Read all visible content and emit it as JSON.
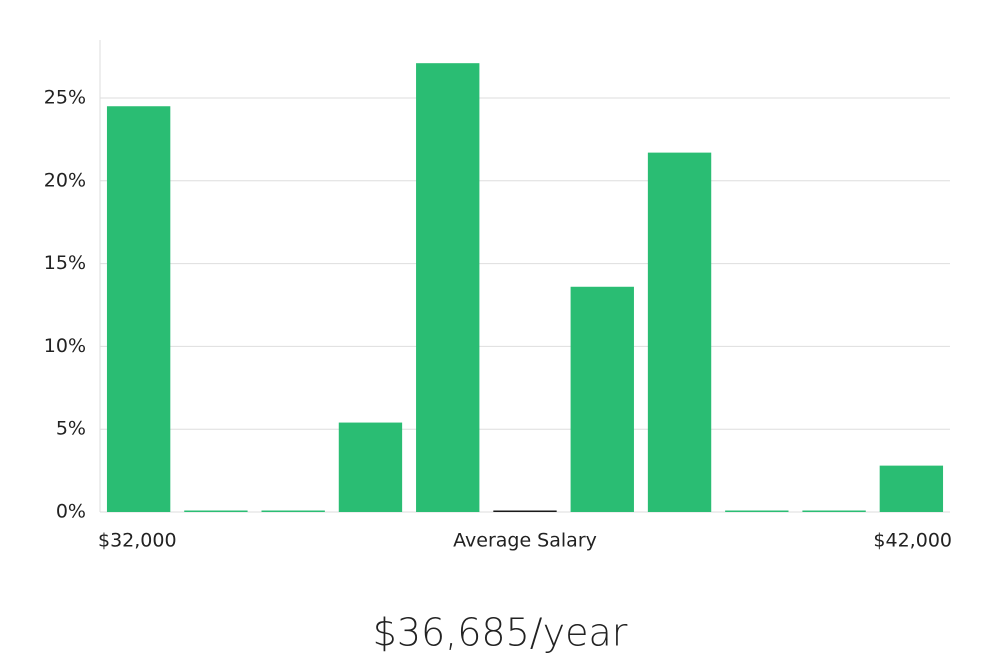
{
  "chart_data": {
    "type": "bar",
    "categories": [
      null,
      null,
      null,
      null,
      null,
      null,
      null,
      null,
      null,
      null,
      null
    ],
    "values": [
      24.5,
      0,
      0,
      5.4,
      27.1,
      0,
      13.6,
      21.7,
      0,
      0,
      2.8
    ],
    "colors": [
      "#2abd73",
      "#2abd73",
      "#2abd73",
      "#2abd73",
      "#2abd73",
      "#1a1a1a",
      "#2abd73",
      "#2abd73",
      "#2abd73",
      "#2abd73",
      "#2abd73"
    ],
    "ylim": [
      0,
      28.5
    ],
    "yticks": [
      {
        "value": 0,
        "label": "0%"
      },
      {
        "value": 5,
        "label": "5%"
      },
      {
        "value": 10,
        "label": "10%"
      },
      {
        "value": 15,
        "label": "15%"
      },
      {
        "value": 20,
        "label": "20%"
      },
      {
        "value": 25,
        "label": "25%"
      }
    ],
    "grid": true,
    "x_range_labels": [
      "$32,000",
      "$42,000"
    ],
    "xlabel": "Average Salary",
    "annotation": "$36,685/year"
  }
}
